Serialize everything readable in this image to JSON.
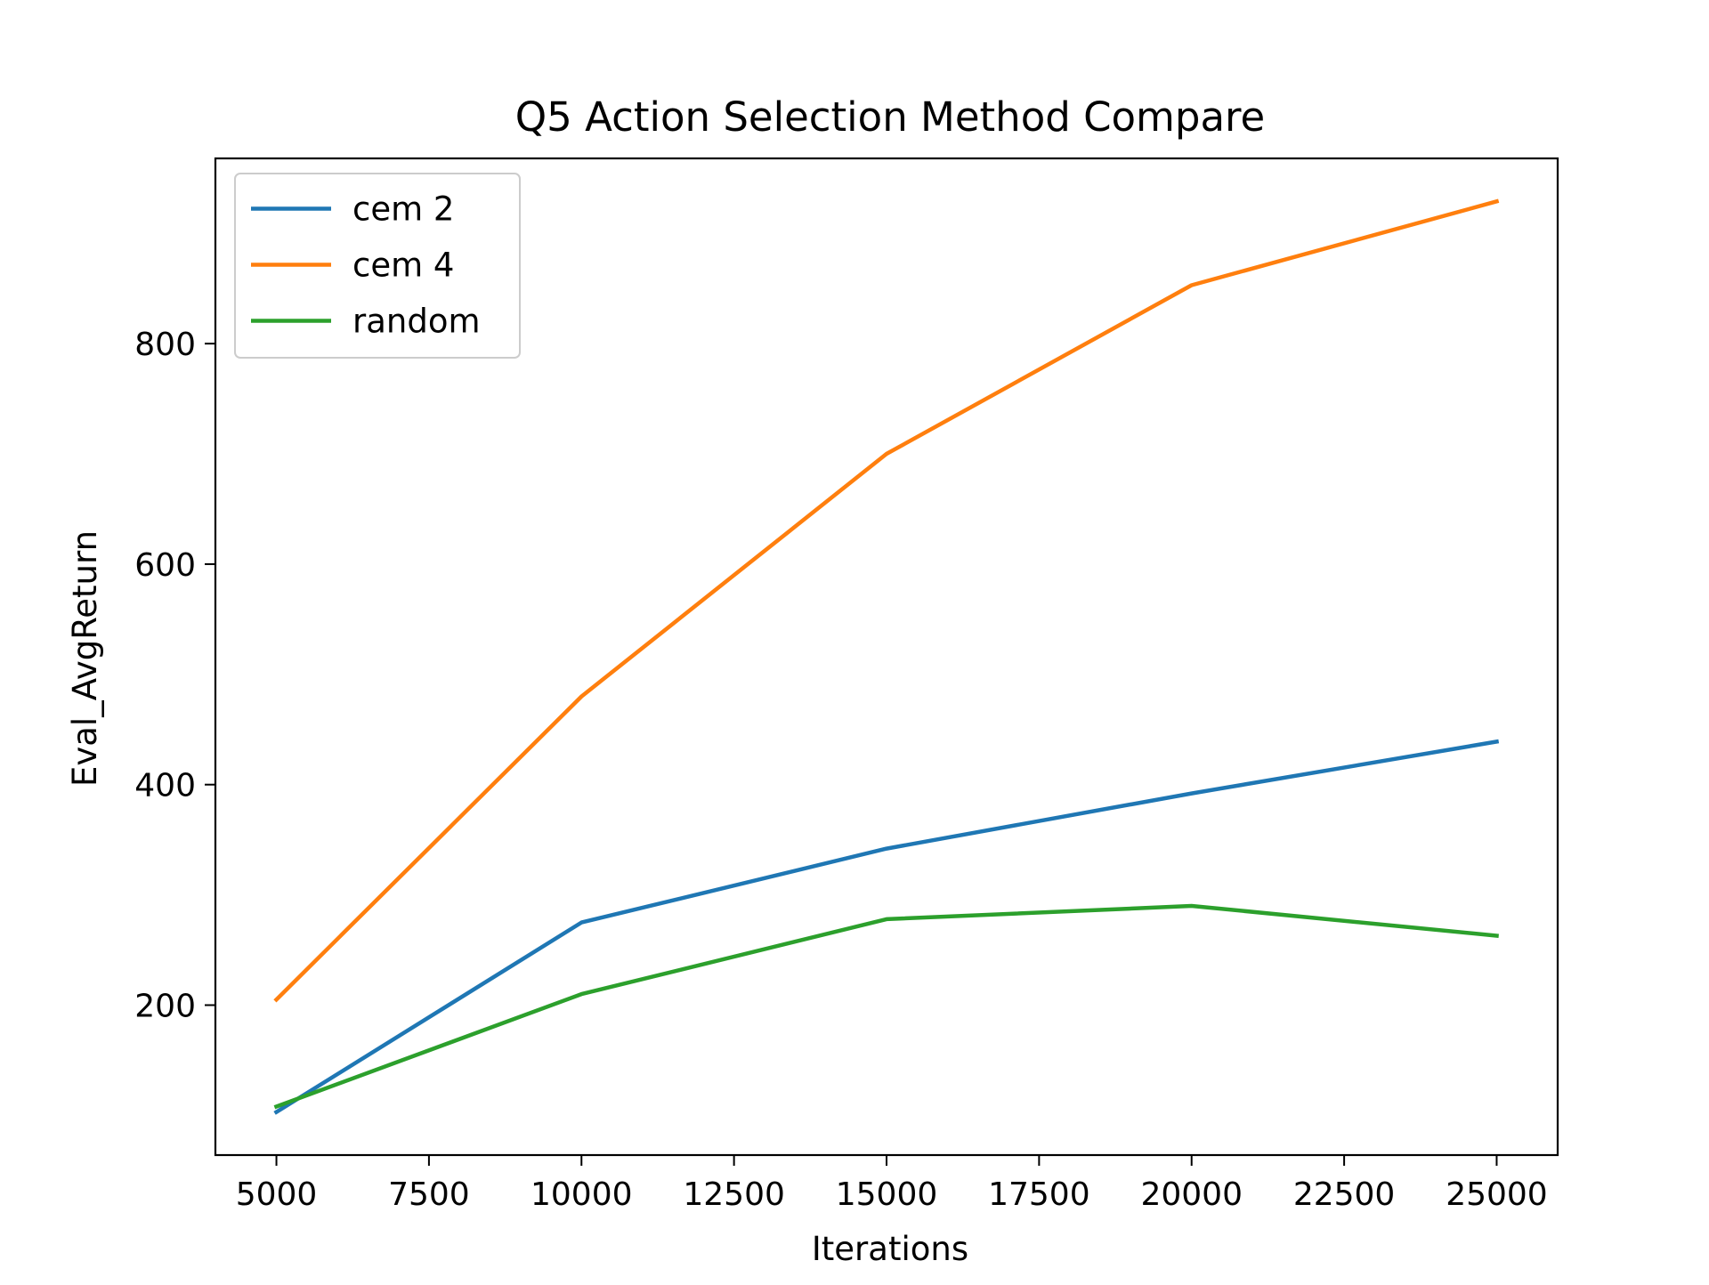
{
  "chart_data": {
    "type": "line",
    "title": "Q5 Action Selection Method Compare",
    "xlabel": "Iterations",
    "ylabel": "Eval_AvgReturn",
    "x": [
      5000,
      10000,
      15000,
      20000,
      25000
    ],
    "xticks": [
      5000,
      7500,
      10000,
      12500,
      15000,
      17500,
      20000,
      22500,
      25000
    ],
    "yticks": [
      200,
      400,
      600,
      800
    ],
    "xlim": [
      4000,
      26000
    ],
    "ylim": [
      64,
      968
    ],
    "grid": false,
    "legend_position": "top-left",
    "series": [
      {
        "name": "cem 2",
        "color": "#1f77b4",
        "values": [
          103,
          275,
          342,
          392,
          439
        ]
      },
      {
        "name": "cem 4",
        "color": "#ff7f0e",
        "values": [
          205,
          480,
          700,
          853,
          929
        ]
      },
      {
        "name": "random",
        "color": "#2ca02c",
        "values": [
          108,
          210,
          278,
          290,
          263
        ]
      }
    ]
  }
}
